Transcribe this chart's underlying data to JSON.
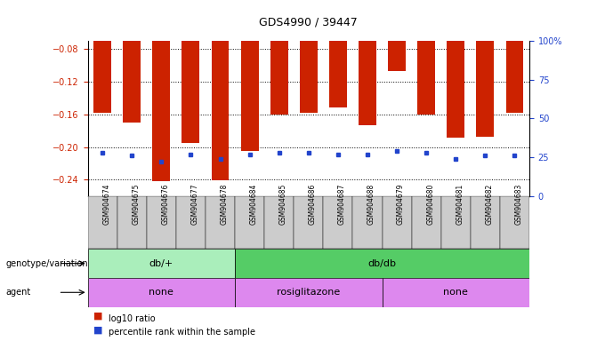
{
  "title": "GDS4990 / 39447",
  "samples": [
    "GSM904674",
    "GSM904675",
    "GSM904676",
    "GSM904677",
    "GSM904678",
    "GSM904684",
    "GSM904685",
    "GSM904686",
    "GSM904687",
    "GSM904688",
    "GSM904679",
    "GSM904680",
    "GSM904681",
    "GSM904682",
    "GSM904683"
  ],
  "log10_ratio": [
    -0.158,
    -0.17,
    -0.242,
    -0.195,
    -0.241,
    -0.205,
    -0.16,
    -0.158,
    -0.152,
    -0.173,
    -0.107,
    -0.16,
    -0.188,
    -0.187,
    -0.158
  ],
  "percentile_rank": [
    28,
    26,
    22,
    27,
    24,
    27,
    28,
    28,
    27,
    27,
    29,
    28,
    24,
    26,
    26
  ],
  "ylim_left": [
    -0.26,
    -0.07
  ],
  "ylim_right": [
    0,
    100
  ],
  "yticks_left": [
    -0.24,
    -0.2,
    -0.16,
    -0.12,
    -0.08
  ],
  "yticks_right": [
    0,
    25,
    50,
    75,
    100
  ],
  "bar_color": "#cc2200",
  "dot_color": "#2244cc",
  "genotype_groups": [
    {
      "label": "db/+",
      "start": 0,
      "end": 5,
      "color": "#aaeebb"
    },
    {
      "label": "db/db",
      "start": 5,
      "end": 15,
      "color": "#55cc66"
    }
  ],
  "agent_groups": [
    {
      "label": "none",
      "start": 0,
      "end": 5,
      "color": "#dd88ee"
    },
    {
      "label": "rosiglitazone",
      "start": 5,
      "end": 10,
      "color": "#dd88ee"
    },
    {
      "label": "none",
      "start": 10,
      "end": 15,
      "color": "#dd88ee"
    }
  ],
  "legend_red": "log10 ratio",
  "legend_blue": "percentile rank within the sample",
  "left_label": "genotype/variation",
  "agent_label": "agent",
  "sample_box_color": "#cccccc"
}
